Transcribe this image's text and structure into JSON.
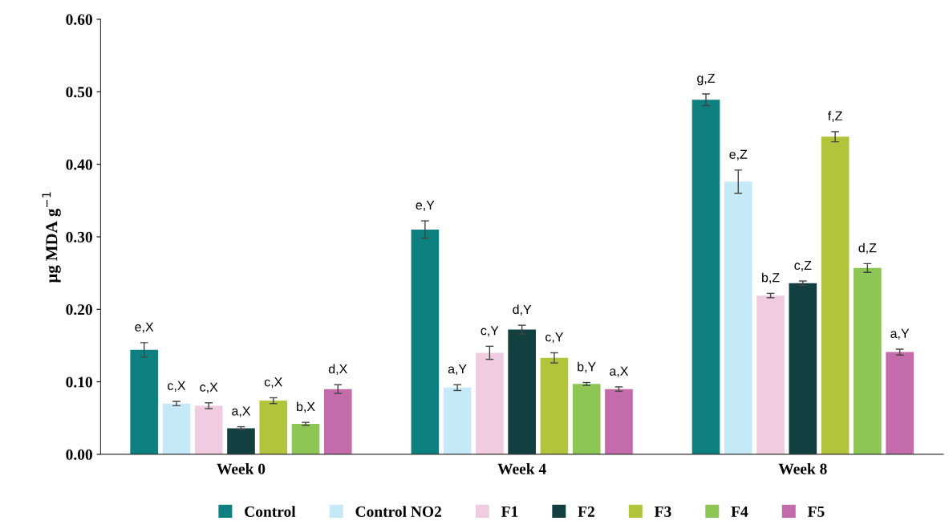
{
  "chart_data": {
    "type": "bar",
    "ylabel": "μg MDA g$^{−1}$",
    "categories": [
      "Week 0",
      "Week 4",
      "Week 8"
    ],
    "ylim": [
      0,
      0.6
    ],
    "yticks": [
      {
        "value": 0,
        "label": "0.00"
      },
      {
        "value": 0.1,
        "label": "0.10"
      },
      {
        "value": 0.2,
        "label": "0.20"
      },
      {
        "value": 0.3,
        "label": "0.30"
      },
      {
        "value": 0.4,
        "label": "0.40"
      },
      {
        "value": 0.5,
        "label": "0.50"
      },
      {
        "value": 0.6,
        "label": "0.60"
      }
    ],
    "grid": false,
    "legend": "bottom",
    "series": [
      {
        "name": "Control",
        "color": "#0e8080",
        "values": [
          0.144,
          0.31,
          0.489
        ],
        "errors": [
          0.01,
          0.012,
          0.008
        ],
        "value_labels": [
          "e,X",
          "e,Y",
          "g,Z"
        ]
      },
      {
        "name": "Control NO2",
        "color": "#c6e9f7",
        "values": [
          0.07,
          0.092,
          0.376
        ],
        "errors": [
          0.003,
          0.004,
          0.016
        ],
        "value_labels": [
          "c,X",
          "a,Y",
          "e,Z"
        ]
      },
      {
        "name": "F1",
        "color": "#f1cbe0",
        "values": [
          0.067,
          0.14,
          0.219
        ],
        "errors": [
          0.004,
          0.009,
          0.003
        ],
        "value_labels": [
          "c,X",
          "c,Y",
          "b,Z"
        ]
      },
      {
        "name": "F2",
        "color": "#123f40",
        "values": [
          0.036,
          0.172,
          0.236
        ],
        "errors": [
          0.002,
          0.006,
          0.003
        ],
        "value_labels": [
          "a,X",
          "d,Y",
          "c,Z"
        ]
      },
      {
        "name": "F3",
        "color": "#b1c43b",
        "values": [
          0.074,
          0.133,
          0.438
        ],
        "errors": [
          0.004,
          0.007,
          0.007
        ],
        "value_labels": [
          "c,X",
          "c,Y",
          "f,Z"
        ]
      },
      {
        "name": "F4",
        "color": "#8dc655",
        "values": [
          0.042,
          0.097,
          0.257
        ],
        "errors": [
          0.002,
          0.002,
          0.006
        ],
        "value_labels": [
          "b,X",
          "b,Y",
          "d,Z"
        ]
      },
      {
        "name": "F5",
        "color": "#c46bab",
        "values": [
          0.09,
          0.09,
          0.141
        ],
        "errors": [
          0.006,
          0.003,
          0.004
        ],
        "value_labels": [
          "d,X",
          "a,X",
          "a,Y"
        ]
      }
    ]
  }
}
